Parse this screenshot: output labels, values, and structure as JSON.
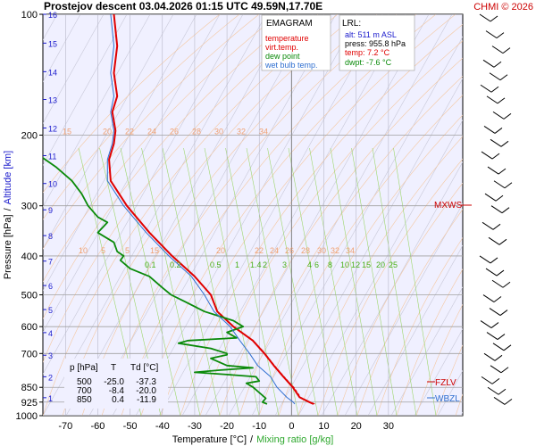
{
  "header": {
    "title": "Prostejov   descent   03.04.2026 01:15 UTC  49.59N,17.70E",
    "copyright": "CHMI © 2026"
  },
  "legend": {
    "heading": "EMAGRAM",
    "items": [
      {
        "label": "temperature",
        "color": "#e00000"
      },
      {
        "label": "virt.temp.",
        "color": "#e00000"
      },
      {
        "label": "dew point",
        "color": "#0a8a0a"
      },
      {
        "label": "wet bulb temp.",
        "color": "#2f6fd0"
      }
    ]
  },
  "lrl": {
    "heading": "LRL:",
    "alt": "alt: 511 m ASL",
    "press": "press: 955.8 hPa",
    "temp": "temp: 7.2 °C",
    "dwpt": "dwpt: -7.6 °C"
  },
  "table": {
    "headers": [
      "p [hPa]",
      "T",
      "Td [°C]"
    ],
    "rows": [
      [
        "500",
        "-25.0",
        "-37.3"
      ],
      [
        "700",
        "-8.4",
        "-20.0"
      ],
      [
        "850",
        "0.4",
        "-11.9"
      ]
    ]
  },
  "markers": {
    "mxws": "MXWS",
    "fzlv": "FZLV",
    "wbzl": "WBZL"
  },
  "chart_data": {
    "type": "line",
    "xlabel": "Temperature [°C]",
    "xlabel_sep": "/",
    "xlabel2": "Mixing ratio [g/kg]",
    "ylabel": "Pressure [hPa]",
    "ylabel_sep": "/",
    "ylabel2": "Altitude [km]",
    "x_ticks": [
      -70,
      -60,
      -50,
      -40,
      -30,
      -20,
      -10,
      0,
      10,
      20,
      30
    ],
    "xlim": [
      -77,
      53
    ],
    "ylim": [
      1000,
      100
    ],
    "y_ticks": [
      100,
      200,
      300,
      400,
      500,
      600,
      700,
      850,
      925,
      1000
    ],
    "altitude_ticks_km": [
      1,
      2,
      3,
      4,
      5,
      6,
      7,
      8,
      9,
      10,
      11,
      12,
      13,
      14,
      15,
      16
    ],
    "altitude_tick_pressures": [
      902,
      800,
      707,
      621,
      544,
      474,
      412,
      356,
      307,
      264,
      225,
      192,
      163,
      139,
      118,
      100
    ],
    "mixing_labels_upper": [
      "15",
      "20",
      "22",
      "24",
      "26",
      "28",
      "30",
      "32",
      "34"
    ],
    "mixing_labels_mid": [
      "10",
      "5",
      "5",
      "15",
      "20",
      "22",
      "24",
      "26",
      "28",
      "30",
      "32",
      "34"
    ],
    "mixing_labels_green": [
      "0.1",
      "0.2",
      "0.5",
      "1",
      "1.4",
      "2",
      "3",
      "4",
      "6",
      "8",
      "10",
      "12",
      "15",
      "20",
      "25"
    ],
    "series": [
      {
        "name": "temperature",
        "color": "#e00000",
        "points": [
          [
            6.8,
            935
          ],
          [
            5.5,
            925
          ],
          [
            2.5,
            900
          ],
          [
            0.4,
            850
          ],
          [
            -2.5,
            800
          ],
          [
            -5.5,
            750
          ],
          [
            -8.4,
            700
          ],
          [
            -12,
            650
          ],
          [
            -18,
            600
          ],
          [
            -23,
            550
          ],
          [
            -25,
            500
          ],
          [
            -30,
            450
          ],
          [
            -37,
            400
          ],
          [
            -44,
            350
          ],
          [
            -51,
            300
          ],
          [
            -56,
            260
          ],
          [
            -56.5,
            230
          ],
          [
            -55,
            210
          ],
          [
            -54.5,
            195
          ],
          [
            -55.5,
            175
          ],
          [
            -54,
            160
          ],
          [
            -55,
            140
          ],
          [
            -54,
            120
          ],
          [
            -55,
            100
          ]
        ]
      },
      {
        "name": "virt.temp.",
        "color": "#e00000",
        "points": [
          [
            7.2,
            935
          ],
          [
            5.8,
            925
          ],
          [
            2.8,
            900
          ],
          [
            0.7,
            850
          ],
          [
            -2.3,
            800
          ],
          [
            -5.3,
            750
          ],
          [
            -8.2,
            700
          ],
          [
            -11.8,
            650
          ],
          [
            -17.8,
            600
          ],
          [
            -22.9,
            550
          ],
          [
            -24.9,
            500
          ],
          [
            -30,
            450
          ],
          [
            -37,
            400
          ],
          [
            -44,
            350
          ],
          [
            -51,
            300
          ],
          [
            -56,
            260
          ],
          [
            -56.5,
            230
          ],
          [
            -55,
            210
          ],
          [
            -54.5,
            195
          ],
          [
            -55.5,
            175
          ],
          [
            -54,
            160
          ],
          [
            -55,
            140
          ],
          [
            -54,
            120
          ],
          [
            -55,
            100
          ]
        ]
      },
      {
        "name": "dew point",
        "color": "#0a8a0a",
        "points": [
          [
            -7.6,
            935
          ],
          [
            -9,
            925
          ],
          [
            -8,
            905
          ],
          [
            -11.9,
            850
          ],
          [
            -14,
            830
          ],
          [
            -10,
            820
          ],
          [
            -11,
            800
          ],
          [
            -20,
            790
          ],
          [
            -30,
            780
          ],
          [
            -22,
            770
          ],
          [
            -12,
            760
          ],
          [
            -20,
            750
          ],
          [
            -25,
            720
          ],
          [
            -20,
            705
          ],
          [
            -20,
            700
          ],
          [
            -25,
            680
          ],
          [
            -35,
            660
          ],
          [
            -32,
            650
          ],
          [
            -17,
            640
          ],
          [
            -20,
            620
          ],
          [
            -15,
            600
          ],
          [
            -18,
            580
          ],
          [
            -27,
            550
          ],
          [
            -33,
            520
          ],
          [
            -37.3,
            500
          ],
          [
            -40,
            480
          ],
          [
            -44,
            450
          ],
          [
            -50,
            430
          ],
          [
            -53,
            410
          ],
          [
            -52,
            400
          ],
          [
            -54,
            390
          ],
          [
            -55,
            370
          ],
          [
            -60,
            350
          ],
          [
            -57,
            330
          ],
          [
            -60,
            320
          ],
          [
            -63,
            300
          ],
          [
            -65,
            280
          ],
          [
            -68,
            260
          ],
          [
            -73,
            240
          ],
          [
            -78,
            225
          ]
        ]
      },
      {
        "name": "wet bulb temp.",
        "color": "#2f6fd0",
        "points": [
          [
            1.0,
            935
          ],
          [
            0.5,
            925
          ],
          [
            -1.5,
            900
          ],
          [
            -4.5,
            850
          ],
          [
            -6.5,
            800
          ],
          [
            -10.5,
            750
          ],
          [
            -13,
            700
          ],
          [
            -16,
            650
          ],
          [
            -19,
            600
          ],
          [
            -24,
            550
          ],
          [
            -27,
            500
          ],
          [
            -31,
            450
          ],
          [
            -38,
            400
          ],
          [
            -45,
            350
          ],
          [
            -52,
            300
          ],
          [
            -57,
            260
          ],
          [
            -57,
            230
          ],
          [
            -55.5,
            210
          ],
          [
            -55,
            195
          ],
          [
            -56,
            175
          ],
          [
            -55,
            160
          ],
          [
            -56,
            140
          ],
          [
            -55,
            120
          ],
          [
            -56,
            100
          ]
        ]
      }
    ]
  }
}
